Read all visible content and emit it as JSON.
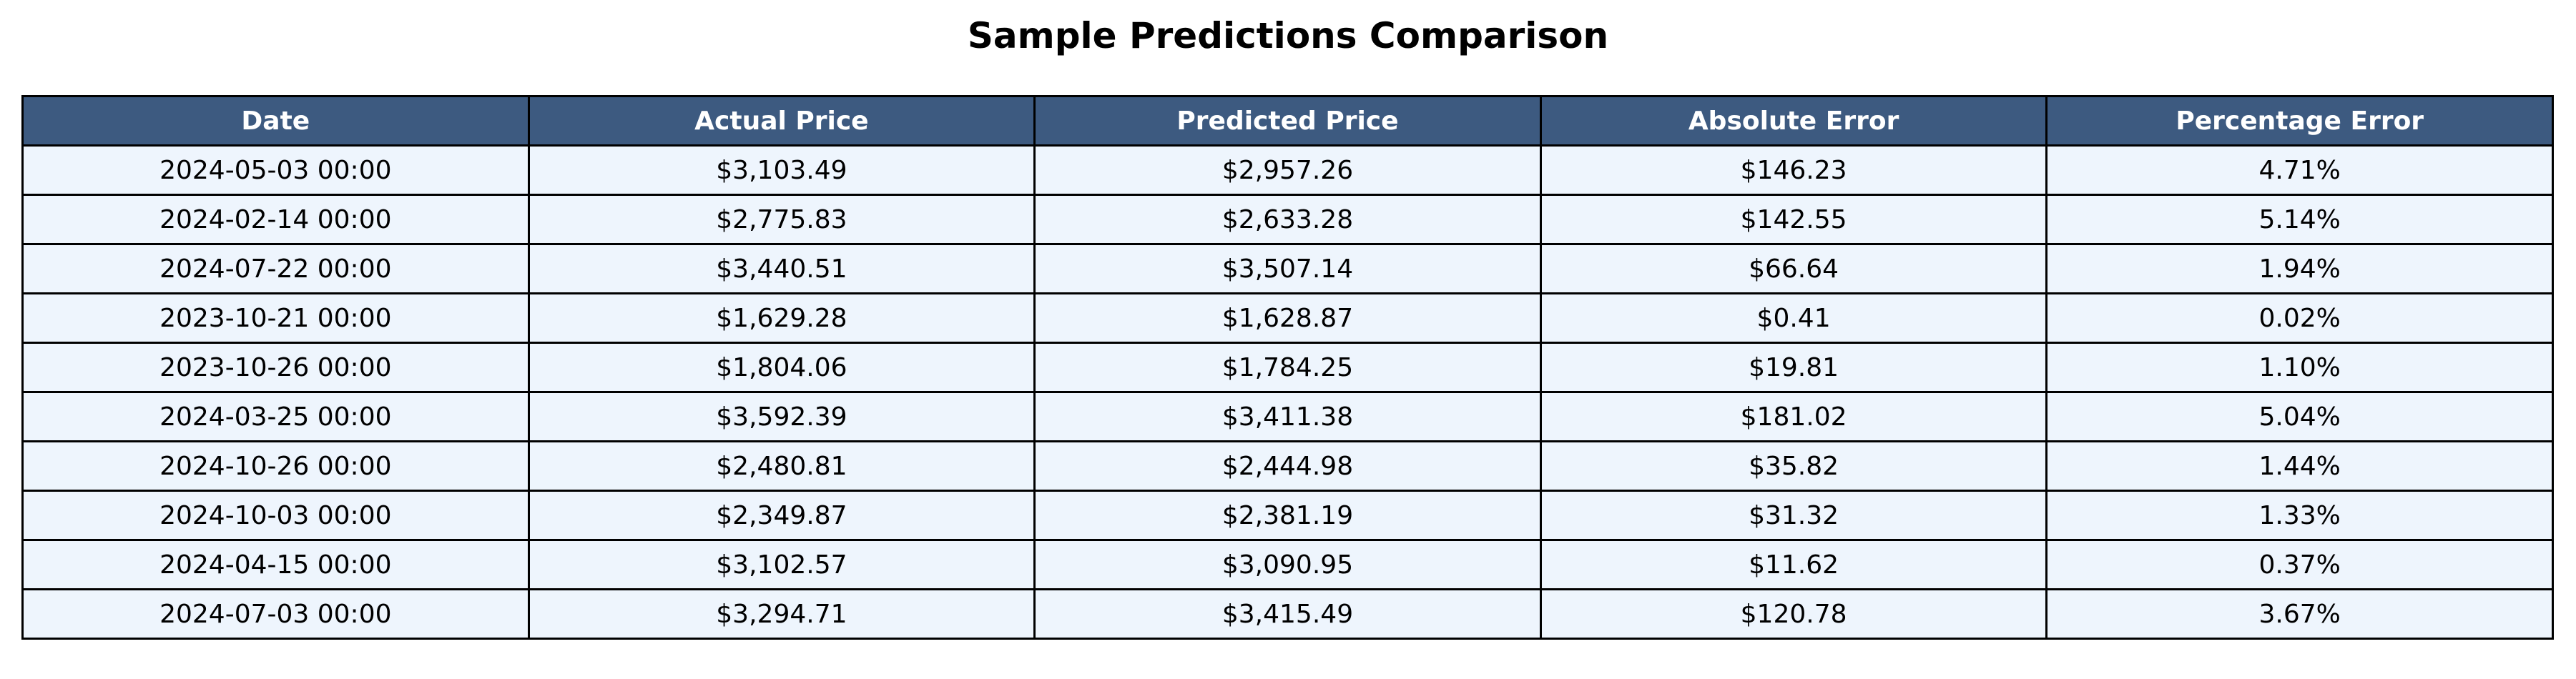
{
  "chart_data": {
    "type": "table",
    "title": "Sample Predictions Comparison",
    "columns": [
      "Date",
      "Actual Price",
      "Predicted Price",
      "Absolute Error",
      "Percentage Error"
    ],
    "rows": [
      [
        "2024-05-03 00:00",
        "$3,103.49",
        "$2,957.26",
        "$146.23",
        "4.71%"
      ],
      [
        "2024-02-14 00:00",
        "$2,775.83",
        "$2,633.28",
        "$142.55",
        "5.14%"
      ],
      [
        "2024-07-22 00:00",
        "$3,440.51",
        "$3,507.14",
        "$66.64",
        "1.94%"
      ],
      [
        "2023-10-21 00:00",
        "$1,629.28",
        "$1,628.87",
        "$0.41",
        "0.02%"
      ],
      [
        "2023-10-26 00:00",
        "$1,804.06",
        "$1,784.25",
        "$19.81",
        "1.10%"
      ],
      [
        "2024-03-25 00:00",
        "$3,592.39",
        "$3,411.38",
        "$181.02",
        "5.04%"
      ],
      [
        "2024-10-26 00:00",
        "$2,480.81",
        "$2,444.98",
        "$35.82",
        "1.44%"
      ],
      [
        "2024-10-03 00:00",
        "$2,349.87",
        "$2,381.19",
        "$31.32",
        "1.33%"
      ],
      [
        "2024-04-15 00:00",
        "$3,102.57",
        "$3,090.95",
        "$11.62",
        "0.37%"
      ],
      [
        "2024-07-03 00:00",
        "$3,294.71",
        "$3,415.49",
        "$120.78",
        "3.67%"
      ]
    ],
    "header_color": "#3d5a80",
    "header_text_color": "#ffffff",
    "cell_color": "#eef5fd",
    "border_color": "#000000"
  }
}
